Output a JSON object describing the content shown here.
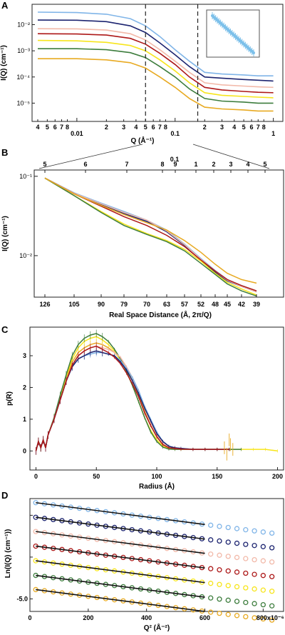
{
  "series_colors": [
    "#80b5e8",
    "#1c2470",
    "#f2b9a9",
    "#ad1818",
    "#f7e51c",
    "#3d7d3d",
    "#e8aa22"
  ],
  "panel_A": {
    "label": "A",
    "ylabel": "I(Q) (cm⁻¹)",
    "xlabel": "Q (Å⁻¹)",
    "xticks": [
      "4",
      "5",
      "6",
      "7",
      "8",
      "0.01",
      "2",
      "3",
      "4",
      "5",
      "6",
      "7",
      "8",
      "0.1",
      "2",
      "3",
      "4",
      "5",
      "6",
      "7",
      "8",
      "1"
    ],
    "yticks": [
      "10⁻²",
      "10⁻³",
      "10⁻⁴",
      "10⁻⁵"
    ]
  },
  "panel_B": {
    "label": "B",
    "ylabel": "I(Q) (cm⁻¹)",
    "xlabel": "Real Space Distance (Å, 2π/Q)",
    "top_ticks": [
      "5",
      "6",
      "7",
      "8",
      "9",
      "1",
      "2",
      "3",
      "4",
      "5"
    ],
    "top_ticks_decade": "0.1",
    "bottom_ticks": [
      "126",
      "105",
      "90",
      "79",
      "70",
      "63",
      "57",
      "52",
      "48",
      "45",
      "42",
      "39"
    ],
    "yticks": [
      "10⁻¹",
      "10⁻²"
    ]
  },
  "panel_C": {
    "label": "C",
    "ylabel": "p(R)",
    "xlabel": "Radius (Å)",
    "xticks": [
      "0",
      "50",
      "100",
      "150",
      "200"
    ],
    "yticks": [
      "0",
      "1",
      "2",
      "3"
    ]
  },
  "panel_D": {
    "label": "D",
    "ylabel": "Ln(I(Q) (cm⁻¹))",
    "xlabel": "Q² (Å⁻²)",
    "xticks": [
      "0",
      "200",
      "400",
      "600",
      "800x10⁻⁶"
    ],
    "ytick": "-5.0"
  },
  "chart_data": [
    {
      "panel": "A",
      "type": "line",
      "x_scale": "log",
      "y_scale": "log",
      "xlim": [
        0.0035,
        1.25
      ],
      "ylim": [
        2e-06,
        0.06
      ],
      "vlines": [
        0.05,
        0.17
      ],
      "x": [
        0.004,
        0.01,
        0.02,
        0.035,
        0.05,
        0.07,
        0.1,
        0.14,
        0.2,
        0.3,
        0.5,
        0.7,
        1.0
      ],
      "series": [
        {
          "values": [
            0.03,
            0.029,
            0.025,
            0.017,
            0.009,
            0.0035,
            0.0011,
            0.0004,
            0.00015,
            0.00013,
            0.00012,
            0.00011,
            0.00011
          ]
        },
        {
          "values": [
            0.015,
            0.0148,
            0.013,
            0.009,
            0.005,
            0.002,
            0.0007,
            0.00025,
            0.0001,
            9e-05,
            8e-05,
            7.5e-05,
            7e-05
          ]
        },
        {
          "values": [
            0.007,
            0.0069,
            0.0062,
            0.0045,
            0.0026,
            0.0011,
            0.0004,
            0.00015,
            6e-05,
            5e-05,
            4.5e-05,
            4.2e-05,
            4e-05
          ]
        },
        {
          "values": [
            0.0045,
            0.0044,
            0.004,
            0.003,
            0.0018,
            0.0008,
            0.0003,
            0.0001,
            4e-05,
            3.2e-05,
            2.8e-05,
            2.6e-05,
            2.5e-05
          ]
        },
        {
          "values": [
            0.0025,
            0.0024,
            0.0021,
            0.0016,
            0.001,
            0.00045,
            0.00017,
            6e-05,
            2.5e-05,
            2e-05,
            1.8e-05,
            1.7e-05,
            1.6e-05
          ]
        },
        {
          "values": [
            0.0012,
            0.0012,
            0.0011,
            0.00085,
            0.00055,
            0.00025,
            0.0001,
            3.5e-05,
            1.5e-05,
            1.2e-05,
            1.1e-05,
            1e-05,
            1e-05
          ]
        },
        {
          "values": [
            0.0005,
            0.0005,
            0.00045,
            0.00035,
            0.00022,
            0.0001,
            4e-05,
            1.5e-05,
            7e-06,
            6e-06,
            5.5e-06,
            5e-06,
            5e-06
          ]
        }
      ]
    },
    {
      "panel": "B",
      "type": "line",
      "y_scale": "log",
      "x": [
        126,
        105,
        90,
        79,
        70,
        63,
        57,
        52,
        48,
        45,
        42,
        39
      ],
      "ylim": [
        0.003,
        0.12
      ],
      "series": [
        {
          "values": [
            0.095,
            0.062,
            0.046,
            0.036,
            0.028,
            0.021,
            0.014,
            0.0092,
            0.0065,
            0.005,
            0.0042,
            0.0036
          ]
        },
        {
          "values": [
            0.095,
            0.061,
            0.044,
            0.034,
            0.027,
            0.02,
            0.0135,
            0.0088,
            0.0062,
            0.0048,
            0.0041,
            0.0035
          ]
        },
        {
          "values": [
            0.095,
            0.061,
            0.045,
            0.035,
            0.028,
            0.0205,
            0.0138,
            0.009,
            0.0064,
            0.0049,
            0.0041,
            0.0035
          ]
        },
        {
          "values": [
            0.095,
            0.06,
            0.042,
            0.031,
            0.024,
            0.018,
            0.013,
            0.0088,
            0.0064,
            0.005,
            0.0042,
            0.0036
          ]
        },
        {
          "values": [
            0.095,
            0.057,
            0.036,
            0.025,
            0.019,
            0.0155,
            0.012,
            0.0085,
            0.006,
            0.0046,
            0.0038,
            0.0032
          ]
        },
        {
          "values": [
            0.095,
            0.057,
            0.035,
            0.024,
            0.0185,
            0.015,
            0.0115,
            0.008,
            0.0058,
            0.0044,
            0.0036,
            0.0031
          ]
        },
        {
          "values": [
            0.095,
            0.06,
            0.043,
            0.033,
            0.026,
            0.021,
            0.0155,
            0.011,
            0.0078,
            0.006,
            0.005,
            0.0045
          ]
        }
      ]
    },
    {
      "panel": "C",
      "type": "line",
      "xlim": [
        -5,
        205
      ],
      "ylim": [
        -0.6,
        3.9
      ],
      "x": [
        0,
        2,
        4,
        6,
        8,
        10,
        15,
        20,
        25,
        30,
        35,
        40,
        45,
        50,
        55,
        60,
        65,
        70,
        75,
        80,
        85,
        90,
        95,
        100,
        105,
        110,
        115,
        120,
        130,
        140,
        150,
        160,
        170,
        180,
        190,
        200
      ],
      "series": [
        {
          "values": [
            0,
            0.3,
            0.1,
            0.35,
            0.1,
            0.5,
            1.0,
            1.6,
            2.2,
            2.65,
            2.9,
            3.0,
            3.05,
            3.1,
            3.1,
            3.05,
            3.0,
            2.85,
            2.6,
            2.3,
            1.9,
            1.4,
            1.0,
            0.6,
            0.3,
            0.15,
            0.1,
            0.08,
            0.05,
            0.05,
            0.05,
            0.05,
            null,
            null,
            null,
            null
          ]
        },
        {
          "values": [
            0,
            0.3,
            0.1,
            0.35,
            0.1,
            0.5,
            1.0,
            1.6,
            2.2,
            2.65,
            2.9,
            3.0,
            3.1,
            3.15,
            3.1,
            3.05,
            3.0,
            2.8,
            2.55,
            2.2,
            1.8,
            1.35,
            0.95,
            0.55,
            0.3,
            0.15,
            0.1,
            0.08,
            0.05,
            0.05,
            0.05,
            0.05,
            null,
            null,
            null,
            null
          ]
        },
        {
          "values": [
            0,
            0.3,
            0.1,
            0.35,
            0.1,
            0.5,
            1.0,
            1.6,
            2.2,
            2.7,
            3.0,
            3.15,
            3.25,
            3.3,
            3.25,
            3.2,
            3.1,
            2.95,
            2.65,
            2.3,
            1.85,
            1.35,
            0.9,
            0.5,
            0.25,
            0.12,
            0.08,
            0.06,
            0.05,
            0.05,
            0.05,
            null,
            null,
            null,
            null,
            null
          ]
        },
        {
          "values": [
            0,
            0.3,
            0.1,
            0.35,
            0.1,
            0.5,
            1.0,
            1.6,
            2.2,
            2.7,
            3.0,
            3.15,
            3.25,
            3.3,
            3.2,
            3.1,
            2.95,
            2.75,
            2.45,
            2.1,
            1.7,
            1.2,
            0.8,
            0.45,
            0.2,
            0.1,
            0.08,
            0.06,
            0.05,
            0.05,
            0.05,
            0.05,
            null,
            null,
            null,
            null
          ]
        },
        {
          "values": [
            0,
            0.3,
            0.1,
            0.35,
            0.1,
            0.5,
            1.05,
            1.7,
            2.35,
            2.9,
            3.25,
            3.45,
            3.55,
            3.6,
            3.5,
            3.35,
            3.15,
            2.85,
            2.5,
            2.05,
            1.55,
            1.05,
            0.65,
            0.35,
            0.15,
            0.08,
            0.06,
            0.05,
            0.05,
            0.05,
            0.05,
            0.05,
            0.05,
            0.05,
            0.05,
            0.0
          ]
        },
        {
          "values": [
            0,
            0.3,
            0.1,
            0.35,
            0.1,
            0.5,
            1.05,
            1.75,
            2.4,
            3.0,
            3.35,
            3.55,
            3.65,
            3.7,
            3.6,
            3.45,
            3.2,
            2.9,
            2.5,
            2.05,
            1.55,
            1.05,
            0.6,
            0.3,
            0.12,
            0.06,
            0.05,
            0.05,
            0.05,
            0.05,
            0.05,
            0.05,
            0.05,
            null,
            null,
            null
          ]
        },
        {
          "values": [
            0,
            0.3,
            0.1,
            0.35,
            0.1,
            0.5,
            1.0,
            1.65,
            2.3,
            2.8,
            3.1,
            3.25,
            3.35,
            3.4,
            3.35,
            3.25,
            3.1,
            2.9,
            2.6,
            2.2,
            1.75,
            1.25,
            0.8,
            0.45,
            0.2,
            0.1,
            0.08,
            0.06,
            0.05,
            0.05,
            0.05,
            0.05,
            null,
            null,
            null,
            null
          ]
        }
      ]
    },
    {
      "panel": "D",
      "type": "scatter",
      "xlim": [
        0,
        870
      ],
      "ylim": [
        -5.3,
        -2.6
      ],
      "fit_x_range": [
        20,
        600
      ],
      "points_x": [
        20,
        50,
        80,
        110,
        140,
        170,
        200,
        230,
        260,
        290,
        320,
        350,
        380,
        410,
        440,
        470,
        500,
        530,
        560,
        590,
        620,
        650,
        680,
        710,
        740,
        770,
        800,
        830
      ],
      "series": [
        {
          "intercept": -2.68,
          "slope": -0.0009
        },
        {
          "intercept": -3.03,
          "slope": -0.0009
        },
        {
          "intercept": -3.37,
          "slope": -0.0009
        },
        {
          "intercept": -3.72,
          "slope": -0.0009
        },
        {
          "intercept": -4.07,
          "slope": -0.0009
        },
        {
          "intercept": -4.42,
          "slope": -0.0009
        },
        {
          "intercept": -4.76,
          "slope": -0.0009
        }
      ]
    }
  ]
}
